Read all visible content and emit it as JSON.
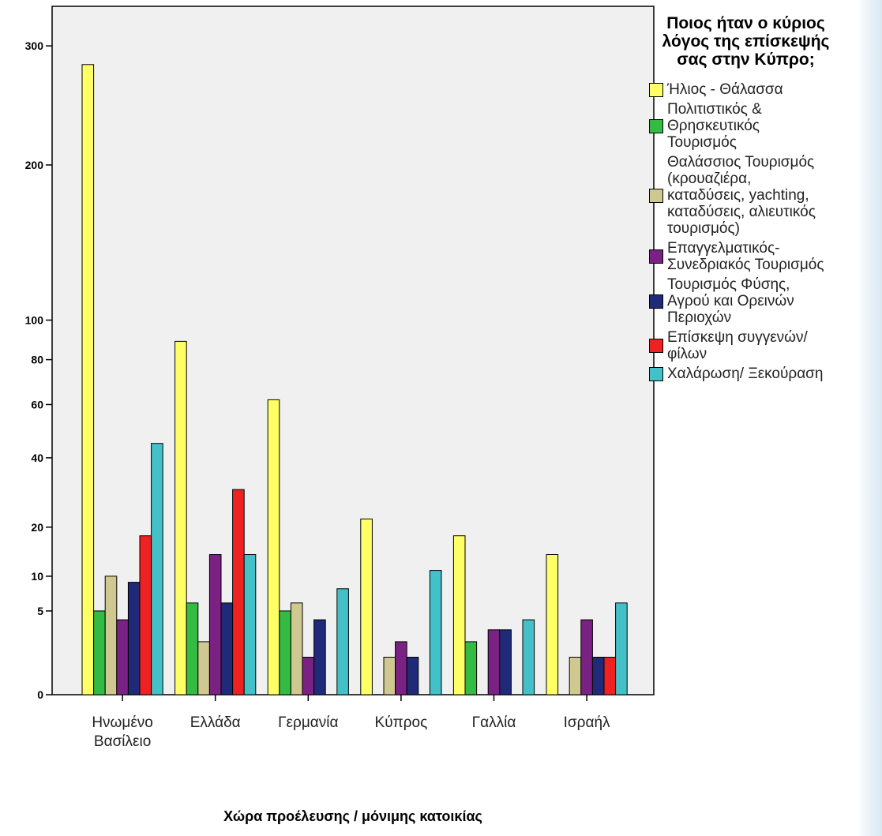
{
  "chart_data": {
    "type": "bar",
    "title": "",
    "xlabel": "Χώρα προέλευσης / μόνιμης κατοικίας",
    "ylabel": "",
    "ylim": [
      0,
      320
    ],
    "y_scale": "square-root",
    "yticks": [
      0,
      5,
      10,
      20,
      40,
      60,
      80,
      100,
      200,
      300
    ],
    "grid": false,
    "plot_background": "#f0f0f0",
    "legend_position": "right",
    "legend_title": "Ποιος ήταν ο κύριος λόγος της επίσκεψής σας στην Κύπρο;",
    "categories": [
      "Ηνωμένο Βασίλειο",
      "Ελλάδα",
      "Γερμανία",
      "Κύπρος",
      "Γαλλία",
      "Ισραήλ"
    ],
    "series": [
      {
        "name": "Ήλιος - Θάλασσα",
        "color": "#ffff66",
        "values": [
          283,
          89,
          62,
          22,
          18,
          14
        ]
      },
      {
        "name": "Πολιτιστικός & Θρησκευτικός Τουρισμός",
        "color": "#33bb44",
        "values": [
          5,
          6,
          5,
          0,
          2,
          0
        ]
      },
      {
        "name": "Θαλάσσιος Τουρισμός (κρουαζιέρα, καταδύσεις, yachting, καταδύσεις, αλιευτικός τουρισμός)",
        "color": "#cfc890",
        "values": [
          10,
          2,
          6,
          1,
          0,
          1
        ]
      },
      {
        "name": "Επαγγελματικός- Συνεδριακός Τουρισμός",
        "color": "#7a2283",
        "values": [
          4,
          14,
          1,
          2,
          3,
          4
        ]
      },
      {
        "name": "Τουρισμός Φύσης, Αγρού και Ορεινών Περιοχών",
        "color": "#1f2a78",
        "values": [
          9,
          6,
          4,
          1,
          3,
          1
        ]
      },
      {
        "name": "Επίσκεψη συγγενών/ φίλων",
        "color": "#ee2222",
        "values": [
          18,
          30,
          0,
          0,
          0,
          1
        ]
      },
      {
        "name": "Χαλάρωση/ Ξεκούραση",
        "color": "#44c0c8",
        "values": [
          45,
          14,
          8,
          11,
          4,
          6
        ]
      }
    ]
  },
  "display": {
    "category_labels": [
      "Ηνωμένο\nΒασίλειο",
      "Ελλάδα",
      "Γερμανία",
      "Κύπρος",
      "Γαλλία",
      "Ισραήλ"
    ],
    "legend_title": "Ποιος ήταν ο κύριος\nλόγος της επίσκεψής\nσας στην Κύπρο;",
    "legend_labels": [
      "Ήλιος - Θάλασσα",
      "Πολιτιστικός &\nΘρησκευτικός\nΤουρισμός",
      "Θαλάσσιος Τουρισμός\n(κρουαζιέρα,\nκαταδύσεις, yachting,\nκαταδύσεις, αλιευτικός\nτουρισμός)",
      "Επαγγελματικός-\nΣυνεδριακός Τουρισμός",
      "Τουρισμός Φύσης,\nΑγρού και Ορεινών\nΠεριοχών",
      "Επίσκεψη συγγενών/\nφίλων",
      "Χαλάρωση/ Ξεκούραση"
    ]
  }
}
